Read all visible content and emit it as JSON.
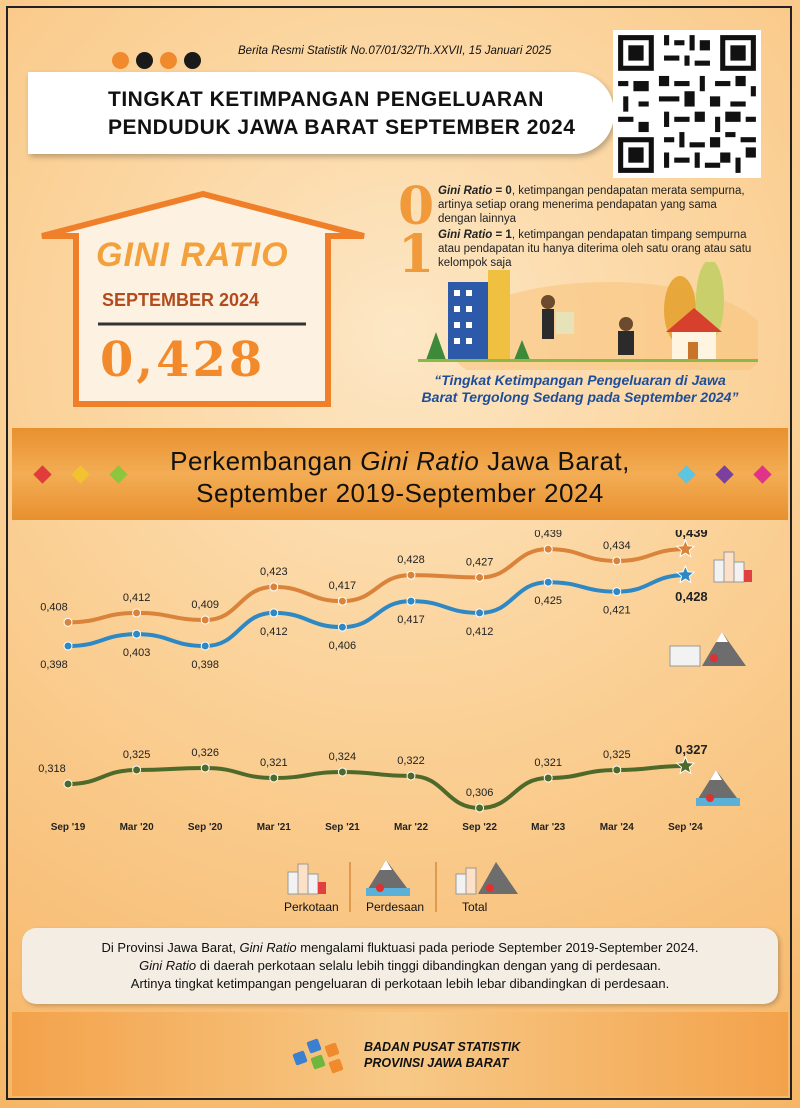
{
  "header": {
    "publication_ref": "Berita Resmi Statistik No.07/01/32/Th.XXVII, 15 Januari 2025",
    "title_line1": "TINGKAT KETIMPANGAN PENGELUARAN",
    "title_line2": "PENDUDUK JAWA BARAT SEPTEMBER 2024",
    "dot_colors": [
      "#f08a2c",
      "#1a1a1a",
      "#f08a2c",
      "#1a1a1a"
    ]
  },
  "highlight": {
    "label": "GINI RATIO",
    "period": "SEPTEMBER 2024",
    "value": "0,428"
  },
  "definitions": {
    "zero_digit": "0",
    "zero_term": "Gini Ratio",
    "zero_eq": " = 0",
    "zero_text": ", ketimpangan pendapatan merata sempurna, artinya setiap orang menerima pendapatan yang sama dengan lainnya",
    "one_digit": "1",
    "one_term": "Gini Ratio",
    "one_eq": " = 1",
    "one_text": ", ketimpangan pendapatan timpang sempurna atau pendapatan itu hanya diterima oleh satu orang atau satu kelompok saja",
    "quote": "“Tingkat Ketimpangan Pengeluaran di Jawa Barat Tergolong Sedang pada September 2024”"
  },
  "chart_title": {
    "line1_pre": "Perkembangan ",
    "line1_italic": "Gini Ratio",
    "line1_post": " Jawa Barat,",
    "line2": "September 2019-September 2024"
  },
  "chart_data": {
    "type": "line",
    "title": "Perkembangan Gini Ratio Jawa Barat, September 2019-September 2024",
    "categories": [
      "Sep '19",
      "Mar '20",
      "Sep '20",
      "Mar '21",
      "Sep '21",
      "Mar '22",
      "Sep '22",
      "Mar '23",
      "Mar '24",
      "Sep '24"
    ],
    "series": [
      {
        "name": "Perkotaan",
        "color": "#d9843a",
        "values": [
          0.408,
          0.412,
          0.409,
          0.423,
          0.417,
          0.428,
          0.427,
          0.439,
          0.434,
          0.439
        ],
        "labels": [
          "0,408",
          "0,412",
          "0,409",
          "0,423",
          "0,417",
          "0,428",
          "0,427",
          "0,439",
          "0,434",
          "0,439"
        ]
      },
      {
        "name": "Total",
        "color": "#2e88c4",
        "values": [
          0.398,
          0.403,
          0.398,
          0.412,
          0.406,
          0.417,
          0.412,
          0.425,
          0.421,
          0.428
        ],
        "labels": [
          "0,398",
          "0,403",
          "0,398",
          "0,412",
          "0,406",
          "0,417",
          "0,412",
          "0,425",
          "0,421",
          "0,428"
        ]
      },
      {
        "name": "Perdesaan",
        "color": "#4e6a2a",
        "values": [
          0.318,
          0.325,
          0.326,
          0.321,
          0.324,
          0.322,
          0.306,
          0.321,
          0.325,
          0.327
        ],
        "labels": [
          "0,318",
          "0,325",
          "0,326",
          "0,321",
          "0,324",
          "0,322",
          "0,306",
          "0,321",
          "0,325",
          "0,327"
        ]
      }
    ],
    "legend": [
      "Perkotaan",
      "Perdesaan",
      "Total"
    ],
    "legend_position": "bottom-center",
    "grid": false
  },
  "notes": {
    "line1_pre": "Di Provinsi Jawa Barat, ",
    "line1_italic": "Gini Ratio",
    "line1_post": " mengalami fluktuasi pada periode September 2019-September 2024.",
    "line2_italic": "Gini Ratio",
    "line2_post": " di daerah perkotaan selalu lebih tinggi dibandingkan dengan yang di perdesaan.",
    "line3": "Artinya tingkat ketimpangan pengeluaran di perkotaan lebih lebar dibandingkan di perdesaan."
  },
  "footer": {
    "org_line1": "BADAN PUSAT STATISTIK",
    "org_line2": "PROVINSI JAWA BARAT"
  },
  "icons": [
    "qr-code-icon",
    "house-icon",
    "city-buildings-icon",
    "village-mountain-icon",
    "bps-logo-icon",
    "star-marker-icon"
  ]
}
